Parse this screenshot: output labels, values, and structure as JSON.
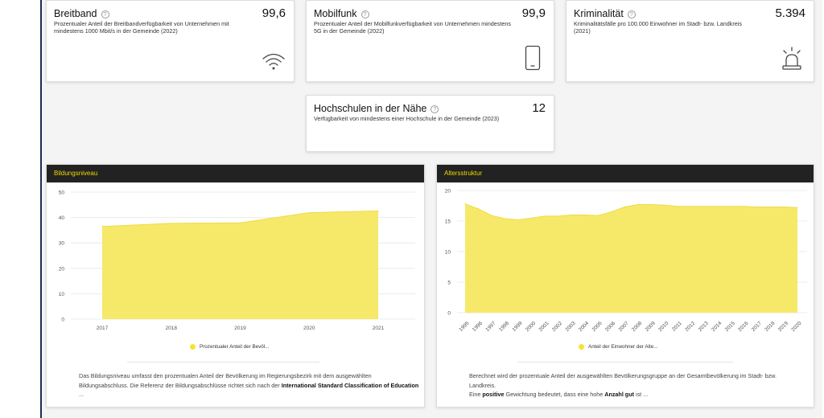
{
  "kpis": [
    {
      "title": "Breitband",
      "value": "99,6",
      "desc": "Prozentualer Anteil der Breitbandverfügbarkeit von Unternehmen mit mindestens 1000 Mbit/s in der Gemeinde (2022)",
      "icon": "wifi-icon"
    },
    {
      "title": "Mobilfunk",
      "value": "99,9",
      "desc": "Prozentualer Anteil der Mobilfunkverfügbarkeit von Unternehmen mindestens 5G in der Gemeinde (2022)",
      "icon": "phone-icon"
    },
    {
      "title": "Kriminalität",
      "value": "5.394",
      "desc": "Kriminalitätsfälle pro 100.000 Einwohner im Stadt- bzw. Landkreis (2021)",
      "icon": "alarm-siren-icon"
    },
    {
      "title": "Hochschulen in der Nähe",
      "value": "12",
      "desc": "Verfügbarkeit von mindestens einer Hochschule in der Gemeinde (2023)"
    }
  ],
  "help_glyph": "?",
  "panels": {
    "bildung": {
      "title": "Bildungsniveau",
      "legend": "Prozentualer Anteil der Bevöl...",
      "note_pre": "Das Bildungsniveau umfasst den prozentualen Anteil der Bevölkerung im Regierungsbezirk mit dem ausgewählten Bildungsabschluss. Die Referenz der Bildungsabschlüsse richtet sich nach der ",
      "note_bold": "International Standard Classification of Education",
      "note_post": " ..."
    },
    "alter": {
      "title": "Altersstruktur",
      "legend": "Anteil der Einwohner der Alte...",
      "note_line1": "Berechnet wird der prozentuale Anteil der ausgewählten Bevölkerungsgruppe an der Gesamtbevölkerung im Stadt- bzw. Landkreis.",
      "note_pre": "Eine ",
      "note_bold1": "positive",
      "note_mid": " Gewichtung bedeutet, dass eine hohe ",
      "note_bold2": "Anzahl gut",
      "note_post": " ist ..."
    }
  },
  "chart_data": [
    {
      "type": "area",
      "title": "Bildungsniveau",
      "x": [
        "2017",
        "2018",
        "2019",
        "2020",
        "2021"
      ],
      "series": [
        {
          "name": "Prozentualer Anteil der Bevöl...",
          "values": [
            36.5,
            37.7,
            37.9,
            41.9,
            42.6
          ]
        }
      ],
      "ylim": [
        0,
        50
      ],
      "yticks": [
        0,
        10,
        20,
        30,
        40,
        50
      ],
      "grid": true,
      "legend": "bottom",
      "color": "#f6e96a"
    },
    {
      "type": "area",
      "title": "Altersstruktur",
      "x": [
        "1995",
        "1996",
        "1997",
        "1998",
        "1999",
        "2000",
        "2001",
        "2002",
        "2003",
        "2004",
        "2005",
        "2006",
        "2007",
        "2008",
        "2009",
        "2010",
        "2011",
        "2012",
        "2013",
        "2014",
        "2015",
        "2016",
        "2017",
        "2018",
        "2019",
        "2020"
      ],
      "series": [
        {
          "name": "Anteil der Einwohner der Alte...",
          "values": [
            17.8,
            17.0,
            15.9,
            15.4,
            15.2,
            15.5,
            15.8,
            15.8,
            16.0,
            16.0,
            15.9,
            16.5,
            17.3,
            17.7,
            17.7,
            17.6,
            17.4,
            17.4,
            17.4,
            17.4,
            17.4,
            17.4,
            17.3,
            17.3,
            17.3,
            17.2
          ]
        }
      ],
      "ylim": [
        0,
        20
      ],
      "yticks": [
        0,
        5,
        10,
        15,
        20
      ],
      "grid": true,
      "legend": "bottom",
      "color": "#f6e96a"
    }
  ]
}
